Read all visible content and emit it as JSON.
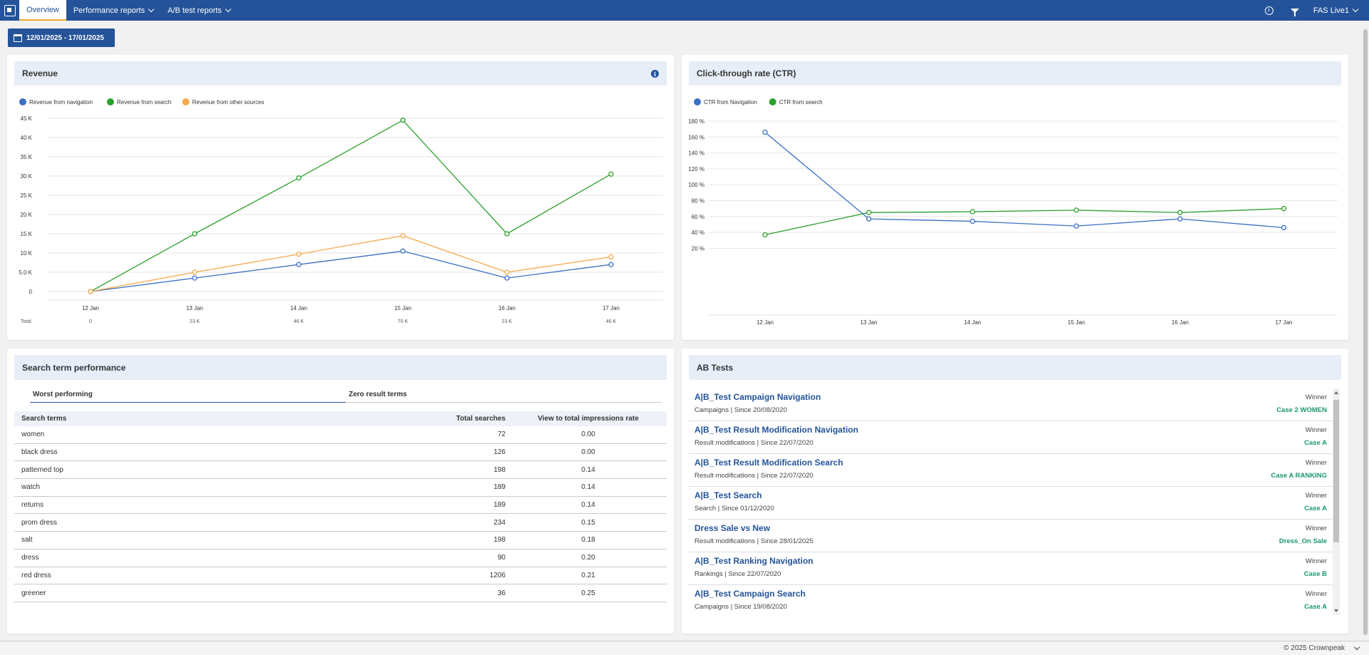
{
  "nav": {
    "tabs": [
      {
        "label": "Overview"
      },
      {
        "label": "Performance reports"
      },
      {
        "label": "A/B test reports"
      }
    ],
    "environment": "FAS Live1",
    "icons": [
      "logo-icon",
      "clock-icon",
      "filter-icon",
      "chevron-down-icon"
    ],
    "brand_color": "#245399"
  },
  "date_range": "12/01/2025 - 17/01/2025",
  "revenue": {
    "title": "Revenue",
    "total_label": "Total",
    "totals": [
      "0",
      "23 K",
      "46 K",
      "70 K",
      "23 K",
      "46 K"
    ]
  },
  "ctr": {
    "title": "Click-through rate (CTR)"
  },
  "chart_data": [
    {
      "type": "line",
      "title": "Revenue",
      "categories": [
        "12 Jan",
        "13 Jan",
        "14 Jan",
        "15 Jan",
        "16 Jan",
        "17 Jan"
      ],
      "yticks": [
        "0",
        "5.0 K",
        "10 K",
        "15 K",
        "20 K",
        "25 K",
        "30 K",
        "35 K",
        "40 K",
        "45 K"
      ],
      "ylim": [
        0,
        45000
      ],
      "legend": "top-left",
      "series": [
        {
          "name": "Revenue from navigation",
          "color": "#3a6fc4",
          "values": [
            0,
            3500,
            7000,
            10500,
            3500,
            7000
          ]
        },
        {
          "name": "Revenue from search",
          "color": "#2ca02c",
          "values": [
            0,
            15000,
            29500,
            44500,
            15000,
            30500
          ]
        },
        {
          "name": "Revenue from other sources",
          "color": "#f5a94c",
          "values": [
            0,
            5000,
            9700,
            14500,
            5000,
            9000
          ]
        }
      ]
    },
    {
      "type": "line",
      "title": "Click-through rate (CTR)",
      "categories": [
        "12 Jan",
        "13 Jan",
        "14 Jan",
        "15 Jan",
        "16 Jan",
        "17 Jan"
      ],
      "yticks": [
        "20 %",
        "40 %",
        "60 %",
        "80 %",
        "100 %",
        "120 %",
        "140 %",
        "160 %",
        "180 %"
      ],
      "ylim": [
        10,
        180
      ],
      "legend": "top-left",
      "series": [
        {
          "name": "CTR from Navigation",
          "color": "#3a6fc4",
          "values": [
            166,
            57,
            54,
            48,
            57,
            46
          ]
        },
        {
          "name": "CTR from search",
          "color": "#2ca02c",
          "values": [
            37,
            65,
            66,
            68,
            65,
            70
          ]
        }
      ]
    }
  ],
  "search_terms": {
    "title": "Search term performance",
    "tabs": [
      "Worst performing",
      "Zero result terms"
    ],
    "headers": [
      "Search terms",
      "Total searches",
      "View to total impressions rate"
    ],
    "rows": [
      [
        "women",
        "72",
        "0.00"
      ],
      [
        "black dress",
        "126",
        "0.00"
      ],
      [
        "patterned top",
        "198",
        "0.14"
      ],
      [
        "watch",
        "189",
        "0.14"
      ],
      [
        "returns",
        "189",
        "0.14"
      ],
      [
        "prom dress",
        "234",
        "0.15"
      ],
      [
        "salt",
        "198",
        "0.18"
      ],
      [
        "dress",
        "90",
        "0.20"
      ],
      [
        "red dress",
        "1206",
        "0.21"
      ],
      [
        "greener",
        "36",
        "0.25"
      ]
    ]
  },
  "ab_tests": {
    "title": "AB Tests",
    "winner_label": "Winner",
    "items": [
      {
        "name": "A|B_Test Campaign Navigation",
        "sub": "Campaigns | Since 20/08/2020",
        "case": "Case 2 WOMEN"
      },
      {
        "name": "A|B_Test Result Modification Navigation",
        "sub": "Result modifications | Since 22/07/2020",
        "case": "Case A"
      },
      {
        "name": "A|B_Test Result Modification Search",
        "sub": "Result modifications | Since 22/07/2020",
        "case": "Case A RANKING"
      },
      {
        "name": "A|B_Test Search",
        "sub": "Search | Since 01/12/2020",
        "case": "Case A"
      },
      {
        "name": "Dress Sale vs New",
        "sub": "Result modifications | Since 28/01/2025",
        "case": "Dress_On Sale"
      },
      {
        "name": "A|B_Test Ranking Navigation",
        "sub": "Rankings | Since 22/07/2020",
        "case": "Case B"
      },
      {
        "name": "A|B_Test Campaign Search",
        "sub": "Campaigns | Since 19/08/2020",
        "case": "Case A"
      }
    ],
    "case_color": "#1a9a6a"
  },
  "footer": {
    "copyright": "© 2025 Crownpeak"
  }
}
